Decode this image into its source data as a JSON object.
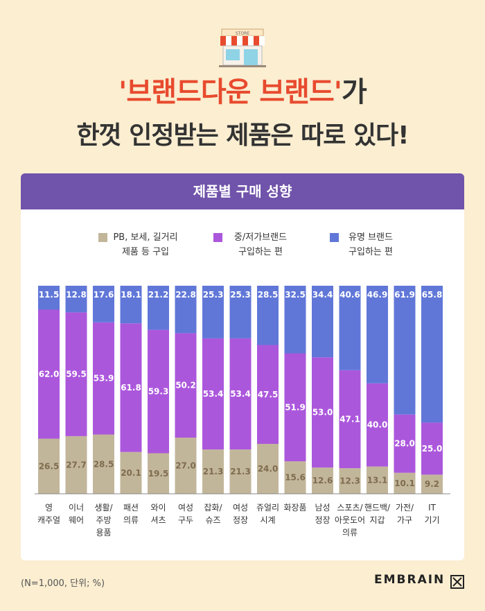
{
  "header": {
    "title_quoted": "'브랜드다운 브랜드'",
    "title_suffix": "가",
    "subtitle": "한껏 인정받는 제품은 따로 있다!",
    "store_sign": "STORE"
  },
  "card": {
    "title": "제품별 구매 성향"
  },
  "legend": [
    {
      "line1": "PB, 보세, 길거리",
      "line2": "제품 등 구입",
      "color": "#c2b69a"
    },
    {
      "line1": "중/저가브랜드",
      "line2": "구입하는 편",
      "color": "#ab57dc"
    },
    {
      "line1": "유명 브랜드",
      "line2": "구입하는 편",
      "color": "#6077d8"
    }
  ],
  "footnote": "(N=1,000, 단위; %)",
  "brand": "EMBRAIN",
  "chart_data": {
    "type": "bar",
    "stacked": true,
    "unit": "%",
    "categories": [
      [
        "영",
        "캐주얼"
      ],
      [
        "이너",
        "웨어"
      ],
      [
        "생활/",
        "주방",
        "용품"
      ],
      [
        "패션",
        "의류"
      ],
      [
        "와이",
        "셔츠"
      ],
      [
        "여성",
        "구두"
      ],
      [
        "잡화/",
        "슈즈"
      ],
      [
        "여성",
        "정장"
      ],
      [
        "쥬얼리",
        "시계"
      ],
      [
        "화장품"
      ],
      [
        "남성",
        "정장"
      ],
      [
        "스포츠/",
        "아웃도어",
        "의류"
      ],
      [
        "핸드백/",
        "지갑"
      ],
      [
        "가전/",
        "가구"
      ],
      [
        "IT",
        "기기"
      ]
    ],
    "series": [
      {
        "name": "PB, 보세, 길거리 제품 등 구입",
        "color": "#c2b69a",
        "label_color": "#7f6c4f",
        "values": [
          26.5,
          27.7,
          28.5,
          20.1,
          19.5,
          27.0,
          21.3,
          21.3,
          24.0,
          15.6,
          12.6,
          12.3,
          13.1,
          10.1,
          9.2
        ]
      },
      {
        "name": "중/저가브랜드 구입하는 편",
        "color": "#ab57dc",
        "label_color": "#ffffff",
        "values": [
          62.0,
          59.5,
          53.9,
          61.8,
          59.3,
          50.2,
          53.4,
          53.4,
          47.5,
          51.9,
          53.0,
          47.1,
          40.0,
          28.0,
          25.0
        ]
      },
      {
        "name": "유명 브랜드 구입하는 편",
        "color": "#6077d8",
        "label_color": "#ffffff",
        "values": [
          11.5,
          12.8,
          17.6,
          18.1,
          21.2,
          22.8,
          25.3,
          25.3,
          28.5,
          32.5,
          34.4,
          40.6,
          46.9,
          61.9,
          65.8
        ]
      }
    ]
  }
}
